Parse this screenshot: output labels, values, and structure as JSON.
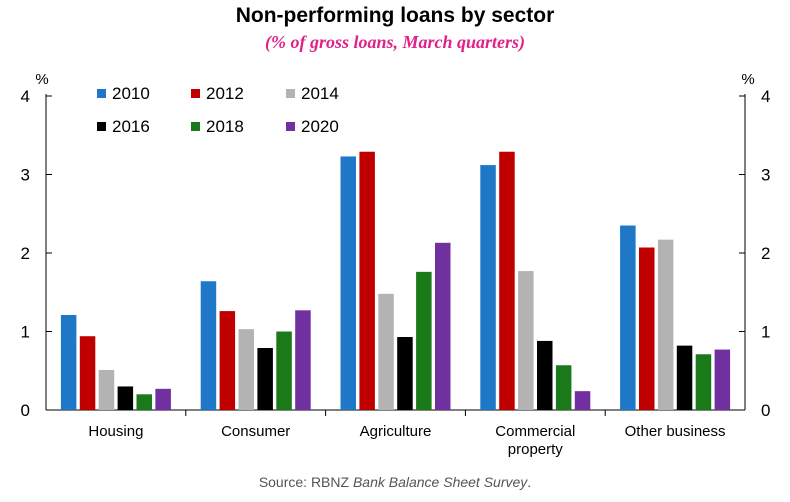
{
  "chart_data": {
    "type": "bar",
    "title": "Non-performing loans by sector",
    "subtitle": "(% of gross loans, March quarters)",
    "ylabel_left": "%",
    "ylabel_right": "%",
    "ylim": [
      0,
      4
    ],
    "yticks": [
      0,
      1,
      2,
      3,
      4
    ],
    "grid": false,
    "legend_position": "top-left",
    "categories": [
      "Housing",
      "Consumer",
      "Agriculture",
      "Commercial\nproperty",
      "Other business"
    ],
    "series": [
      {
        "name": "2010",
        "color": "#1f77c8",
        "values": [
          1.21,
          1.64,
          3.23,
          3.12,
          2.35
        ]
      },
      {
        "name": "2012",
        "color": "#c00000",
        "values": [
          0.94,
          1.26,
          3.29,
          3.29,
          2.07
        ]
      },
      {
        "name": "2014",
        "color": "#b3b3b3",
        "values": [
          0.51,
          1.03,
          1.48,
          1.77,
          2.17
        ]
      },
      {
        "name": "2016",
        "color": "#000000",
        "values": [
          0.3,
          0.79,
          0.93,
          0.88,
          0.82
        ]
      },
      {
        "name": "2018",
        "color": "#1a7a1a",
        "values": [
          0.2,
          1.0,
          1.76,
          0.57,
          0.71
        ]
      },
      {
        "name": "2020",
        "color": "#7030a0",
        "values": [
          0.27,
          1.27,
          2.13,
          0.24,
          0.77
        ]
      }
    ],
    "source_prefix": "Source: RBNZ ",
    "source_italic": "Bank Balance Sheet Survey",
    "source_suffix": "."
  }
}
